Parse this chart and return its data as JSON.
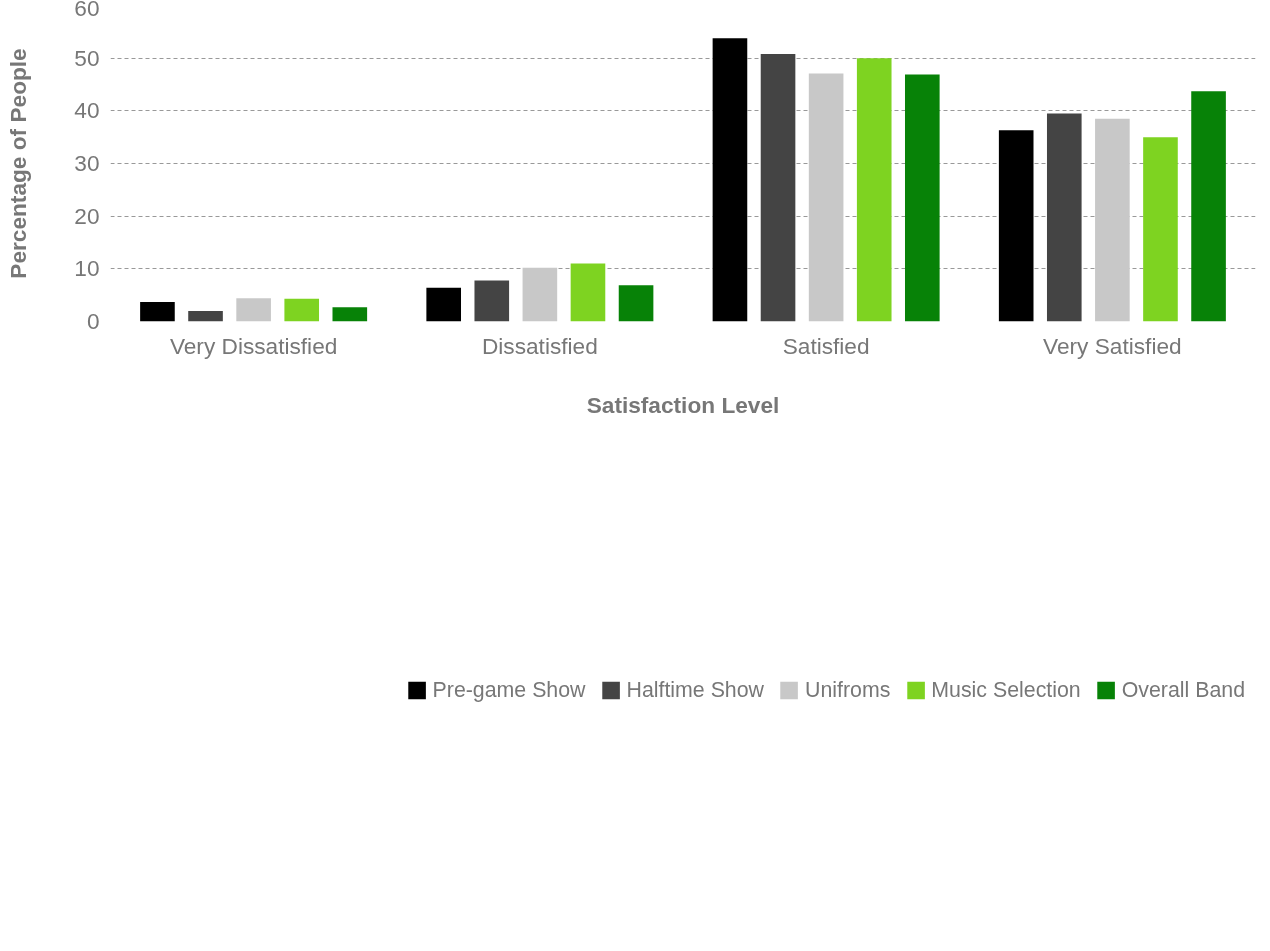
{
  "chart_data": {
    "type": "bar",
    "xlabel": "Satisfaction Level",
    "ylabel": "Percentage of People",
    "categories": [
      "Very Dissatisfied",
      "Dissatisfied",
      "Satisfied",
      "Very Satisfied"
    ],
    "series": [
      {
        "name": "Pre-game Show",
        "color": "#000000",
        "values": [
          3.7,
          6.4,
          53.8,
          36.3
        ]
      },
      {
        "name": "Halftime Show",
        "color": "#444444",
        "values": [
          2.0,
          7.8,
          50.8,
          39.5
        ]
      },
      {
        "name": "Unifroms",
        "color": "#c8c8c8",
        "values": [
          4.4,
          10.2,
          47.1,
          38.5
        ]
      },
      {
        "name": "Music Selection",
        "color": "#7ed321",
        "values": [
          4.3,
          11.0,
          50.0,
          35.0
        ]
      },
      {
        "name": "Overall Band",
        "color": "#078207",
        "values": [
          2.7,
          6.9,
          46.9,
          43.7
        ]
      }
    ],
    "ylim": [
      0,
      60
    ],
    "yticks": [
      0,
      10,
      20,
      30,
      40,
      50,
      60
    ],
    "grid": "y",
    "legend": "bottom"
  }
}
